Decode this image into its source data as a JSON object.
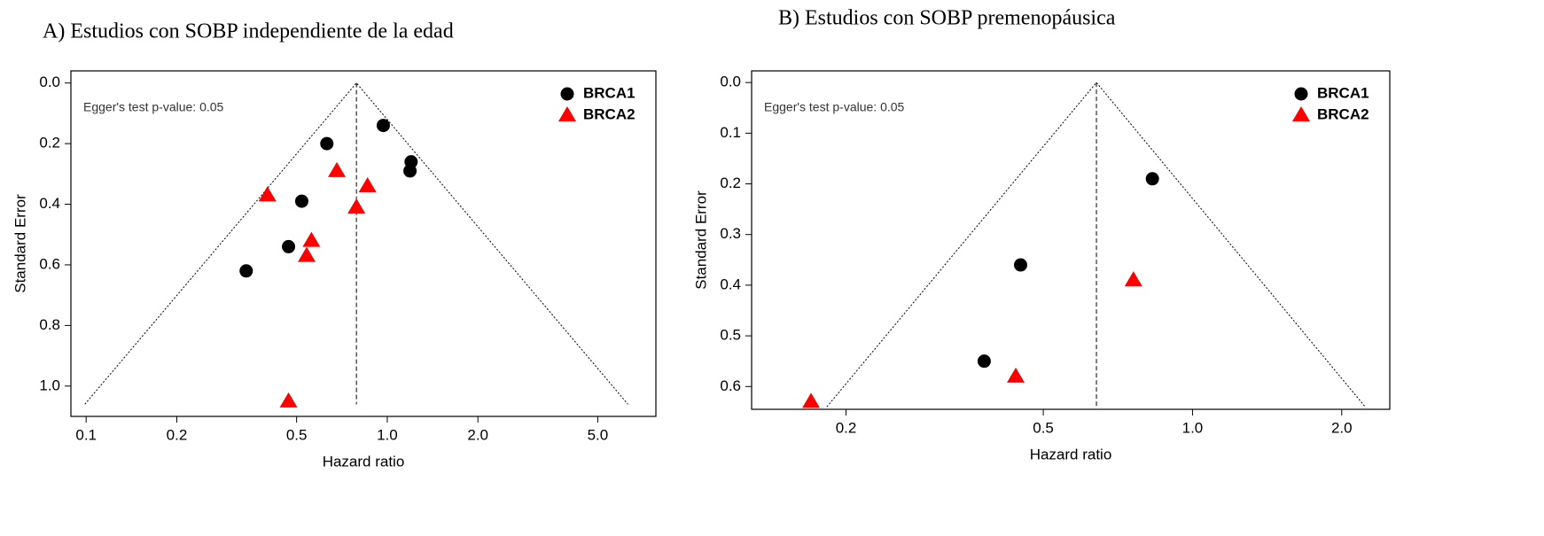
{
  "chart_data": [
    {
      "type": "scatter",
      "title": "A)  Estudios con SOBP independiente de la edad",
      "x_label": "Hazard ratio",
      "y_label": "Standard Error",
      "annotation": "Egger's test p-value: 0.05",
      "x_log": true,
      "y_inverted": true,
      "legend": "top-right",
      "xlim": [
        0.089,
        7.8
      ],
      "xticks": [
        0.1,
        0.2,
        0.5,
        {
          "value": 1,
          "label": "1.0"
        },
        {
          "value": 2,
          "label": "2.0"
        },
        {
          "value": 5,
          "label": "5.0"
        }
      ],
      "ylim": [
        -0.04,
        1.1
      ],
      "yticks": [
        {
          "value": 0,
          "label": "0.0"
        },
        0.2,
        0.4,
        0.6,
        0.8,
        {
          "value": 1,
          "label": "1.0"
        }
      ],
      "reference_x": 0.79,
      "funnel": {
        "x": [
          0.099,
          0.79,
          6.3
        ],
        "y": [
          1.06,
          0,
          1.06
        ]
      },
      "series": [
        {
          "name": "BRCA1",
          "color": "#000000",
          "marker": "circle",
          "x": [
            0.63,
            0.97,
            1.2,
            1.19,
            0.52,
            0.47,
            0.34
          ],
          "values": [
            0.2,
            0.14,
            0.26,
            0.29,
            0.39,
            0.54,
            0.62
          ]
        },
        {
          "name": "BRCA2",
          "color": "#ff0000",
          "marker": "triangle",
          "x": [
            0.68,
            0.4,
            0.86,
            0.79,
            0.56,
            0.54,
            0.47
          ],
          "values": [
            0.29,
            0.37,
            0.34,
            0.41,
            0.52,
            0.57,
            1.05
          ]
        }
      ]
    },
    {
      "type": "scatter",
      "title": "B)  Estudios con SOBP premenopáusica",
      "x_label": "Hazard ratio",
      "y_label": "Standard Error",
      "annotation": "Egger's test p-value: 0.05",
      "x_log": true,
      "y_inverted": true,
      "legend": "top-right",
      "xlim": [
        0.129,
        2.5
      ],
      "xticks": [
        0.2,
        0.5,
        {
          "value": 1,
          "label": "1.0"
        },
        {
          "value": 2,
          "label": "2.0"
        }
      ],
      "ylim": [
        -0.023,
        0.645
      ],
      "yticks": [
        {
          "value": 0,
          "label": "0.0"
        },
        0.1,
        0.2,
        0.3,
        0.4,
        0.5,
        0.6
      ],
      "reference_x": 0.64,
      "funnel": {
        "x": [
          0.183,
          0.64,
          2.23
        ],
        "y": [
          0.64,
          0,
          0.64
        ]
      },
      "series": [
        {
          "name": "BRCA1",
          "color": "#000000",
          "marker": "circle",
          "x": [
            0.83,
            0.45,
            0.38
          ],
          "values": [
            0.19,
            0.36,
            0.55
          ]
        },
        {
          "name": "BRCA2",
          "color": "#ff0000",
          "marker": "triangle",
          "x": [
            0.76,
            0.44,
            0.17
          ],
          "values": [
            0.39,
            0.58,
            0.63
          ]
        }
      ]
    }
  ]
}
